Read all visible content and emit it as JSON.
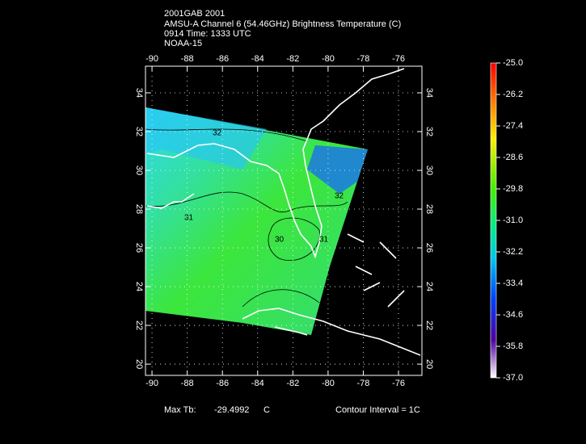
{
  "header": {
    "lines": [
      "2001GAB 2001",
      "AMSU-A Channel 6 (54.46GHz) Brightness Temperature (C)",
      "0914 Time: 1333 UTC",
      "NOAA-15"
    ]
  },
  "map": {
    "lonlim": [
      -90.37,
      -74.67
    ],
    "latlim": [
      19.42,
      35.375
    ],
    "lon_ticks": [
      -90,
      -88,
      -86,
      -84,
      -82,
      -80,
      -78,
      -76
    ],
    "lat_ticks": [
      20,
      22,
      24,
      26,
      28,
      30,
      32,
      34
    ],
    "grid": true,
    "contour_labels": [
      "32",
      "31",
      "30",
      "32",
      "31"
    ]
  },
  "colorbar": {
    "ticks": [
      {
        "value": -25,
        "label": "-25.0"
      },
      {
        "value": -26.2,
        "label": "-26.2"
      },
      {
        "value": -27.4,
        "label": "-27.4"
      },
      {
        "value": -28.6,
        "label": "-28.6"
      },
      {
        "value": -29.8,
        "label": "-29.8"
      },
      {
        "value": -31,
        "label": "-31.0"
      },
      {
        "value": -32.2,
        "label": "-32.2"
      },
      {
        "value": -33.4,
        "label": "-33.4"
      },
      {
        "value": -34.6,
        "label": "-34.6"
      },
      {
        "value": -35.8,
        "label": "-35.8"
      },
      {
        "value": -37,
        "label": "-37.0"
      }
    ],
    "lim": [
      -25,
      -37
    ]
  },
  "footer": {
    "max_label": "Max Tb:",
    "max_value": "-29.4992",
    "max_unit": "C",
    "contour": "Contour Interval = 1C"
  }
}
